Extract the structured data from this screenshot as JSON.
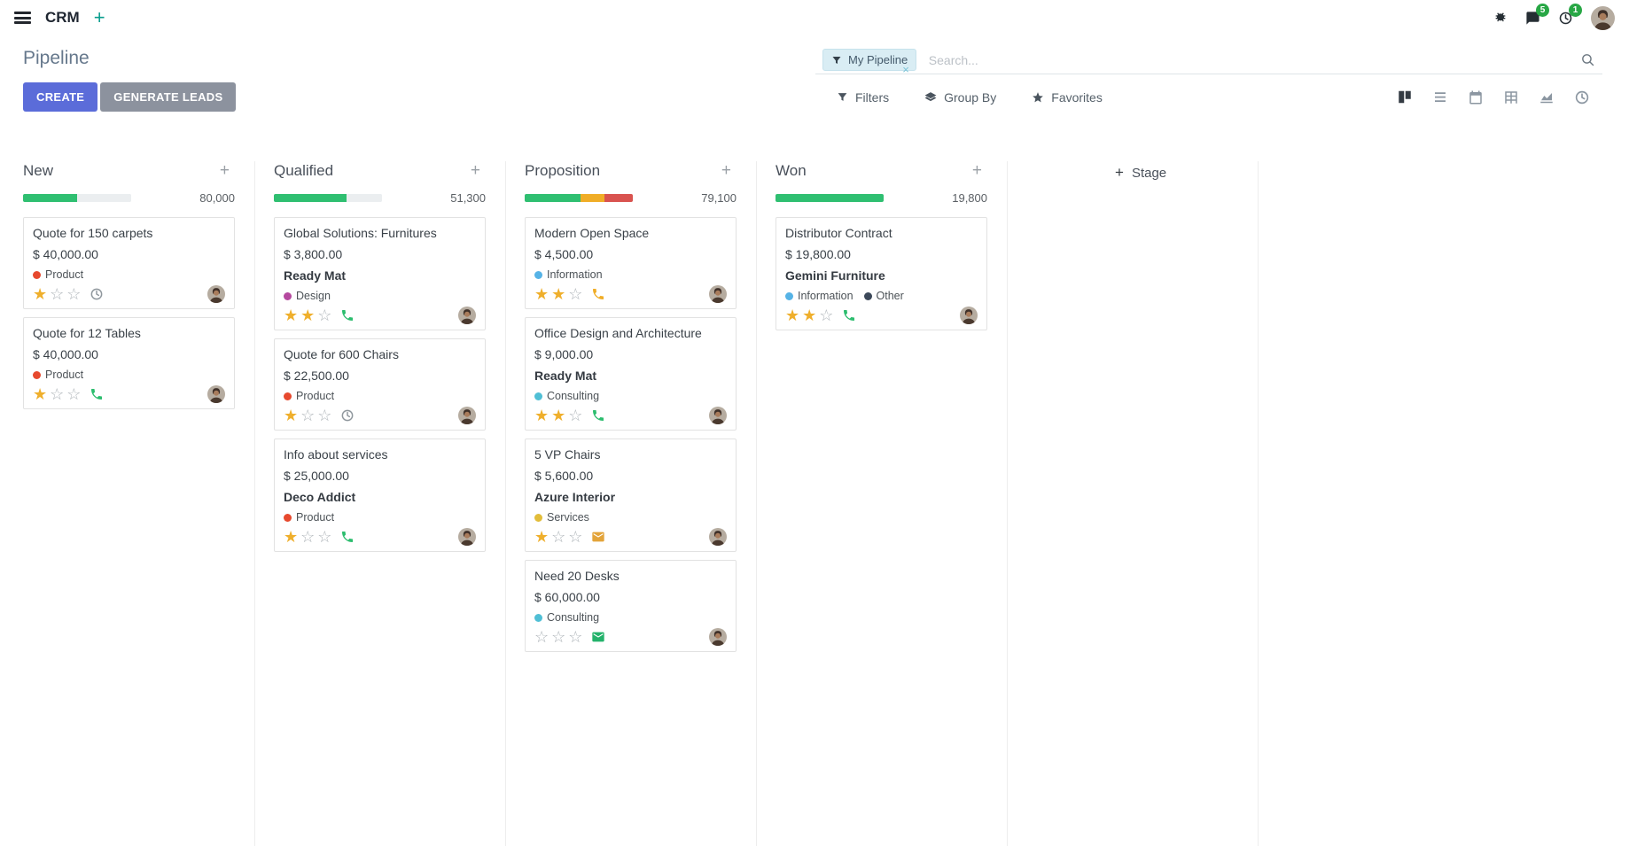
{
  "topbar": {
    "app_name": "CRM",
    "messages_badge": "5",
    "activities_badge": "1"
  },
  "control_panel": {
    "title": "Pipeline",
    "search": {
      "facet": "My Pipeline",
      "placeholder": "Search..."
    },
    "create_label": "CREATE",
    "generate_leads_label": "GENERATE LEADS",
    "filters_label": "Filters",
    "group_by_label": "Group By",
    "favorites_label": "Favorites"
  },
  "colors": {
    "primary_button": "#5b6cd9",
    "secondary_button": "#8c929e",
    "progress_green": "#2fbf71",
    "progress_yellow": "#f0ad27",
    "progress_red": "#d9534f",
    "star_gold": "#efaf2c",
    "badge_green": "#28a745"
  },
  "icons": {
    "topbar": [
      "hamburger-icon",
      "plus-icon",
      "bug-icon",
      "messages-icon",
      "activities-clock-icon",
      "avatar"
    ],
    "search": [
      "filter-funnel-icon",
      "facet-remove-icon",
      "search-icon"
    ],
    "menus": [
      "filter-icon",
      "layers-icon",
      "favorite-star-icon"
    ],
    "view_switcher": [
      "kanban-view-icon",
      "list-view-icon",
      "calendar-view-icon",
      "pivot-view-icon",
      "graph-view-icon",
      "activity-view-icon"
    ],
    "cards": [
      "priority-star-icon",
      "phone-icon",
      "clock-icon",
      "envelope-icon",
      "avatar"
    ]
  },
  "kanban": {
    "add_stage_label": "Stage",
    "columns": [
      {
        "name": "New",
        "total": "80,000",
        "progress_segments": [
          {
            "status": "planned-future",
            "color": "#2fbf71",
            "pct": 50
          },
          {
            "status": "no-activity",
            "color": "#ebeef0",
            "pct": 50
          }
        ],
        "cards": [
          {
            "title": "Quote for 150 carpets",
            "amount": "$ 40,000.00",
            "tags": [
              {
                "label": "Product",
                "color": "#e7492e"
              }
            ],
            "stars": 1,
            "activity": "clock",
            "activity_color": "#8f979d"
          },
          {
            "title": "Quote for 12 Tables",
            "amount": "$ 40,000.00",
            "tags": [
              {
                "label": "Product",
                "color": "#e7492e"
              }
            ],
            "stars": 1,
            "activity": "phone",
            "activity_color": "#2cbd6e"
          }
        ]
      },
      {
        "name": "Qualified",
        "total": "51,300",
        "progress_segments": [
          {
            "status": "planned-future",
            "color": "#2fbf71",
            "pct": 67
          },
          {
            "status": "no-activity",
            "color": "#ebeef0",
            "pct": 33
          }
        ],
        "cards": [
          {
            "title": "Global Solutions: Furnitures",
            "amount": "$ 3,800.00",
            "company": "Ready Mat",
            "tags": [
              {
                "label": "Design",
                "color": "#b5499f"
              }
            ],
            "stars": 2,
            "activity": "phone",
            "activity_color": "#2cbd6e"
          },
          {
            "title": "Quote for 600 Chairs",
            "amount": "$ 22,500.00",
            "tags": [
              {
                "label": "Product",
                "color": "#e7492e"
              }
            ],
            "stars": 1,
            "activity": "clock",
            "activity_color": "#8f979d"
          },
          {
            "title": "Info about services",
            "amount": "$ 25,000.00",
            "company": "Deco Addict",
            "tags": [
              {
                "label": "Product",
                "color": "#e7492e"
              }
            ],
            "stars": 1,
            "activity": "phone",
            "activity_color": "#2cbd6e"
          }
        ]
      },
      {
        "name": "Proposition",
        "total": "79,100",
        "progress_segments": [
          {
            "status": "planned-future",
            "color": "#2fbf71",
            "pct": 52
          },
          {
            "status": "today",
            "color": "#f0ad27",
            "pct": 22
          },
          {
            "status": "overdue",
            "color": "#d9534f",
            "pct": 26
          }
        ],
        "cards": [
          {
            "title": "Modern Open Space",
            "amount": "$ 4,500.00",
            "tags": [
              {
                "label": "Information",
                "color": "#56b3e6"
              }
            ],
            "stars": 2,
            "activity": "phone",
            "activity_color": "#f0ad27"
          },
          {
            "title": "Office Design and Architecture",
            "amount": "$ 9,000.00",
            "company": "Ready Mat",
            "tags": [
              {
                "label": "Consulting",
                "color": "#50bfd5"
              }
            ],
            "stars": 2,
            "activity": "phone",
            "activity_color": "#2cbd6e"
          },
          {
            "title": "5 VP Chairs",
            "amount": "$ 5,600.00",
            "company": "Azure Interior",
            "tags": [
              {
                "label": "Services",
                "color": "#e2bd3a"
              }
            ],
            "stars": 1,
            "activity": "envelope",
            "activity_color": "#e3a43a"
          },
          {
            "title": "Need 20 Desks",
            "amount": "$ 60,000.00",
            "tags": [
              {
                "label": "Consulting",
                "color": "#50bfd5"
              }
            ],
            "stars": 0,
            "activity": "envelope",
            "activity_color": "#24b26b"
          }
        ]
      },
      {
        "name": "Won",
        "total": "19,800",
        "progress_segments": [
          {
            "status": "planned-future",
            "color": "#2fbf71",
            "pct": 100
          }
        ],
        "cards": [
          {
            "title": "Distributor Contract",
            "amount": "$ 19,800.00",
            "company": "Gemini Furniture",
            "tags": [
              {
                "label": "Information",
                "color": "#56b3e6"
              },
              {
                "label": "Other",
                "color": "#3c4859"
              }
            ],
            "stars": 2,
            "activity": "phone",
            "activity_color": "#2cbd6e"
          }
        ]
      }
    ]
  }
}
